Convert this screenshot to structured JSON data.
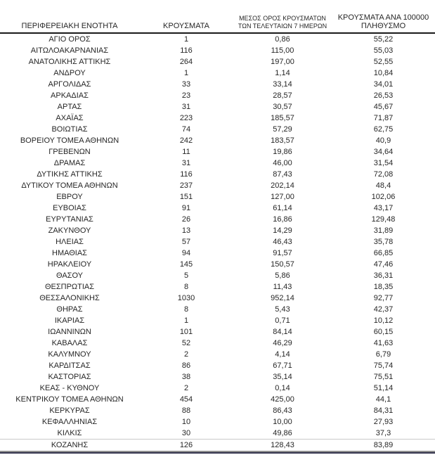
{
  "table": {
    "columns": [
      {
        "label": "ΠΕΡΙΦΕΡΕΙΑΚΗ ΕΝΟΤΗΤΑ"
      },
      {
        "label": "ΚΡΟΥΣΜΑΤΑ"
      },
      {
        "label": "ΜΕΣΟΣ ΟΡΟΣ ΚΡΟΥΣΜΑΤΩΝ ΤΩΝ ΤΕΛΕΥΤΑΙΩΝ 7 ΗΜΕΡΩΝ",
        "line1": "ΜΕΣΟΣ ΟΡΟΣ ΚΡΟΥΣΜΑΤΩΝ",
        "line2": "ΤΩΝ ΤΕΛΕΥΤΑΙΩΝ 7 ΗΜΕΡΩΝ"
      },
      {
        "label": "ΚΡΟΥΣΜΑΤΑ ΑΝΑ 100000 ΠΛΗΘΥΣΜΟ",
        "line1": "ΚΡΟΥΣΜΑΤΑ ΑΝΑ 100000",
        "line2": "ΠΛΗΘΥΣΜΟ"
      }
    ],
    "rows": [
      [
        "ΑΓΙΟ ΟΡΟΣ",
        "1",
        "0,86",
        "55,22"
      ],
      [
        "ΑΙΤΩΛΟΑΚΑΡΝΑΝΙΑΣ",
        "116",
        "115,00",
        "55,03"
      ],
      [
        "ΑΝΑΤΟΛΙΚΗΣ ΑΤΤΙΚΗΣ",
        "264",
        "197,00",
        "52,55"
      ],
      [
        "ΑΝΔΡΟΥ",
        "1",
        "1,14",
        "10,84"
      ],
      [
        "ΑΡΓΟΛΙΔΑΣ",
        "33",
        "33,14",
        "34,01"
      ],
      [
        "ΑΡΚΑΔΙΑΣ",
        "23",
        "28,57",
        "26,53"
      ],
      [
        "ΑΡΤΑΣ",
        "31",
        "30,57",
        "45,67"
      ],
      [
        "ΑΧΑΪΑΣ",
        "223",
        "185,57",
        "71,87"
      ],
      [
        "ΒΟΙΩΤΙΑΣ",
        "74",
        "57,29",
        "62,75"
      ],
      [
        "ΒΟΡΕΙΟΥ ΤΟΜΕΑ ΑΘΗΝΩΝ",
        "242",
        "183,57",
        "40,9"
      ],
      [
        "ΓΡΕΒΕΝΩΝ",
        "11",
        "19,86",
        "34,64"
      ],
      [
        "ΔΡΑΜΑΣ",
        "31",
        "46,00",
        "31,54"
      ],
      [
        "ΔΥΤΙΚΗΣ ΑΤΤΙΚΗΣ",
        "116",
        "87,43",
        "72,08"
      ],
      [
        "ΔΥΤΙΚΟΥ ΤΟΜΕΑ ΑΘΗΝΩΝ",
        "237",
        "202,14",
        "48,4"
      ],
      [
        "ΕΒΡΟΥ",
        "151",
        "127,00",
        "102,06"
      ],
      [
        "ΕΥΒΟΙΑΣ",
        "91",
        "61,14",
        "43,17"
      ],
      [
        "ΕΥΡΥΤΑΝΙΑΣ",
        "26",
        "16,86",
        "129,48"
      ],
      [
        "ΖΑΚΥΝΘΟΥ",
        "13",
        "14,29",
        "31,89"
      ],
      [
        "ΗΛΕΙΑΣ",
        "57",
        "46,43",
        "35,78"
      ],
      [
        "ΗΜΑΘΙΑΣ",
        "94",
        "91,57",
        "66,85"
      ],
      [
        "ΗΡΑΚΛΕΙΟΥ",
        "145",
        "150,57",
        "47,46"
      ],
      [
        "ΘΑΣΟΥ",
        "5",
        "5,86",
        "36,31"
      ],
      [
        "ΘΕΣΠΡΩΤΙΑΣ",
        "8",
        "11,43",
        "18,35"
      ],
      [
        "ΘΕΣΣΑΛΟΝΙΚΗΣ",
        "1030",
        "952,14",
        "92,77"
      ],
      [
        "ΘΗΡΑΣ",
        "8",
        "5,43",
        "42,37"
      ],
      [
        "ΙΚΑΡΙΑΣ",
        "1",
        "0,71",
        "10,12"
      ],
      [
        "ΙΩΑΝΝΙΝΩΝ",
        "101",
        "84,14",
        "60,15"
      ],
      [
        "ΚΑΒΑΛΑΣ",
        "52",
        "46,29",
        "41,63"
      ],
      [
        "ΚΑΛΥΜΝΟΥ",
        "2",
        "4,14",
        "6,79"
      ],
      [
        "ΚΑΡΔΙΤΣΑΣ",
        "86",
        "67,71",
        "75,74"
      ],
      [
        "ΚΑΣΤΟΡΙΑΣ",
        "38",
        "35,14",
        "75,51"
      ],
      [
        "ΚΕΑΣ - ΚΥΘΝΟΥ",
        "2",
        "0,14",
        "51,14"
      ],
      [
        "ΚΕΝΤΡΙΚΟΥ ΤΟΜΕΑ ΑΘΗΝΩΝ",
        "454",
        "425,00",
        "44,1"
      ],
      [
        "ΚΕΡΚΥΡΑΣ",
        "88",
        "86,43",
        "84,31"
      ],
      [
        "ΚΕΦΑΛΛΗΝΙΑΣ",
        "10",
        "10,00",
        "27,93"
      ],
      [
        "ΚΙΛΚΙΣ",
        "30",
        "49,86",
        "37,3"
      ],
      [
        "ΚΟΖΑΝΗΣ",
        "126",
        "128,43",
        "83,89"
      ]
    ]
  },
  "colors": {
    "text": "#262626",
    "header_rule": "#1b1b1b",
    "bottom_rule_gray": "#8f8f8f",
    "bottom_rule_dark": "#34344e",
    "last_row_rule": "#c9c9c9"
  }
}
